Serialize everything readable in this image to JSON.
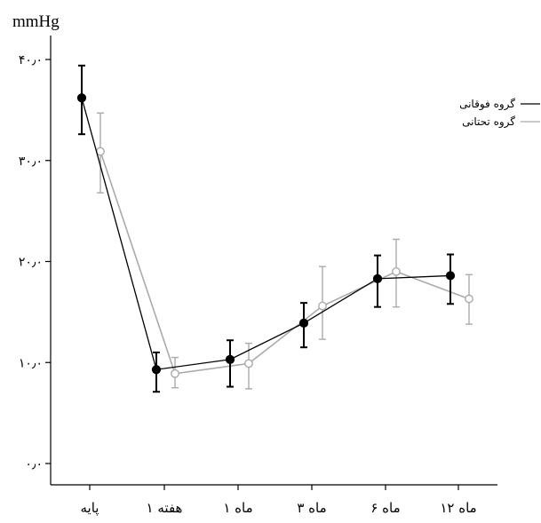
{
  "chart_data": {
    "type": "line",
    "ylabel": "mmHg",
    "categories": [
      "پایه",
      "هفته ۱",
      "ماه ۱",
      "ماه ۳",
      "ماه ۶",
      "ماه ۱۲"
    ],
    "ylim": [
      0,
      40
    ],
    "yticks": [
      {
        "value": 0,
        "label": "۰٫۰"
      },
      {
        "value": 10,
        "label": "۱۰٫۰"
      },
      {
        "value": 20,
        "label": "۲۰٫۰"
      },
      {
        "value": 30,
        "label": "۳۰٫۰"
      },
      {
        "value": 40,
        "label": "۴۰٫۰"
      }
    ],
    "grid": false,
    "legend_position": "top-right",
    "series": [
      {
        "name": "گروه فوقانی",
        "color": "#000000",
        "marker": "filled-circle",
        "values": [
          36.2,
          9.3,
          10.3,
          13.9,
          18.3,
          18.6
        ],
        "err_low": [
          32.6,
          7.1,
          7.6,
          11.5,
          15.5,
          15.8
        ],
        "err_high": [
          39.4,
          11.0,
          12.2,
          15.9,
          20.6,
          20.7
        ]
      },
      {
        "name": "گروه تحتانی",
        "color": "#aaaaaa",
        "marker": "open-circle",
        "values": [
          30.9,
          8.9,
          9.9,
          15.6,
          19.0,
          16.3
        ],
        "err_low": [
          26.8,
          7.5,
          7.4,
          12.3,
          15.5,
          13.8
        ],
        "err_high": [
          34.7,
          10.5,
          11.9,
          19.5,
          22.2,
          18.7
        ]
      }
    ]
  }
}
